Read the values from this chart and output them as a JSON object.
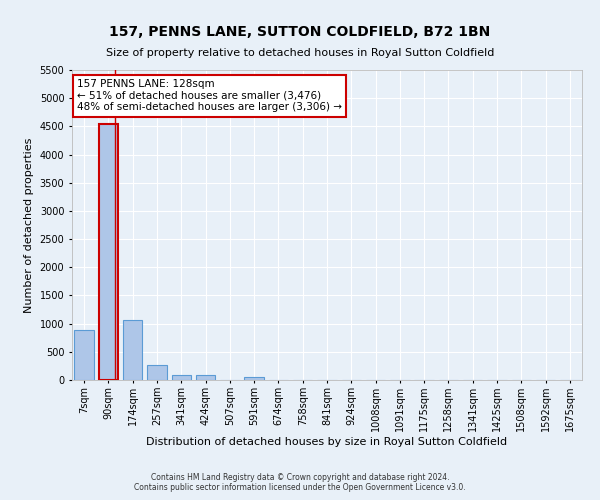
{
  "title": "157, PENNS LANE, SUTTON COLDFIELD, B72 1BN",
  "subtitle": "Size of property relative to detached houses in Royal Sutton Coldfield",
  "xlabel": "Distribution of detached houses by size in Royal Sutton Coldfield",
  "ylabel": "Number of detached properties",
  "footer_line1": "Contains HM Land Registry data © Crown copyright and database right 2024.",
  "footer_line2": "Contains public sector information licensed under the Open Government Licence v3.0.",
  "annotation_line1": "157 PENNS LANE: 128sqm",
  "annotation_line2": "← 51% of detached houses are smaller (3,476)",
  "annotation_line3": "48% of semi-detached houses are larger (3,306) →",
  "bar_categories": [
    "7sqm",
    "90sqm",
    "174sqm",
    "257sqm",
    "341sqm",
    "424sqm",
    "507sqm",
    "591sqm",
    "674sqm",
    "758sqm",
    "841sqm",
    "924sqm",
    "1008sqm",
    "1091sqm",
    "1175sqm",
    "1258sqm",
    "1341sqm",
    "1425sqm",
    "1508sqm",
    "1592sqm",
    "1675sqm"
  ],
  "bar_values": [
    880,
    4550,
    1060,
    275,
    80,
    80,
    0,
    50,
    0,
    0,
    0,
    0,
    0,
    0,
    0,
    0,
    0,
    0,
    0,
    0,
    0
  ],
  "bar_color": "#aec6e8",
  "bar_edge_color": "#5b9bd5",
  "highlight_bar_index": 1,
  "highlight_color_edge": "#cc0000",
  "vline_color": "#cc0000",
  "vline_x_offset": 0.27,
  "background_color": "#e8f0f8",
  "grid_color": "#ffffff",
  "ylim": [
    0,
    5500
  ],
  "yticks": [
    0,
    500,
    1000,
    1500,
    2000,
    2500,
    3000,
    3500,
    4000,
    4500,
    5000,
    5500
  ],
  "annotation_box_color": "#cc0000",
  "annotation_bg": "#ffffff",
  "title_fontsize": 10,
  "subtitle_fontsize": 8,
  "ylabel_fontsize": 8,
  "xlabel_fontsize": 8,
  "tick_fontsize": 7,
  "footer_fontsize": 5.5,
  "annotation_fontsize": 7.5
}
